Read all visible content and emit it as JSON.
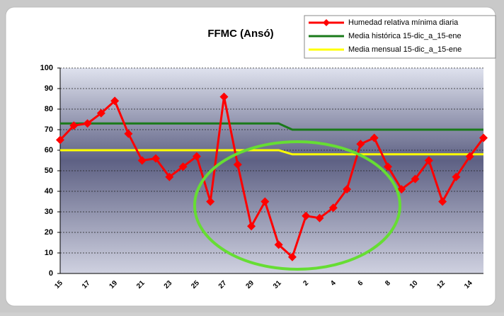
{
  "chart_data": {
    "type": "line",
    "title": "FFMC (Ansó)",
    "categories": [
      "15",
      null,
      "17",
      null,
      "19",
      null,
      "21",
      null,
      "23",
      null,
      "25",
      null,
      "27",
      null,
      "29",
      null,
      "31",
      null,
      "2",
      null,
      "4",
      null,
      "6",
      null,
      "8",
      null,
      "10",
      null,
      "12",
      null,
      "14",
      null
    ],
    "series": [
      {
        "name": "Humedad relativa mínima diaria",
        "color": "#ff0000",
        "marker": "diamond",
        "values": [
          65,
          72,
          73,
          78,
          84,
          68,
          55,
          56,
          47,
          52,
          57,
          35,
          86,
          53,
          23,
          35,
          14,
          8,
          28,
          27,
          32,
          41,
          63,
          66,
          52,
          41,
          46,
          55,
          35,
          47,
          57,
          66
        ]
      },
      {
        "name": "Media histórica 15-dic_a_15-ene",
        "color": "#1a7a1a",
        "values": [
          73,
          73,
          73,
          73,
          73,
          73,
          73,
          73,
          73,
          73,
          73,
          73,
          73,
          73,
          73,
          73,
          73,
          70,
          70,
          70,
          70,
          70,
          70,
          70,
          70,
          70,
          70,
          70,
          70,
          70,
          70,
          70
        ]
      },
      {
        "name": "Media mensual 15-dic_a_15-ene",
        "color": "#ffff00",
        "values": [
          60,
          60,
          60,
          60,
          60,
          60,
          60,
          60,
          60,
          60,
          60,
          60,
          60,
          60,
          60,
          60,
          60,
          58,
          58,
          58,
          58,
          58,
          58,
          58,
          58,
          58,
          58,
          58,
          58,
          58,
          58,
          58
        ]
      }
    ],
    "ylim": [
      0,
      100
    ],
    "yticks": [
      0,
      10,
      20,
      30,
      40,
      50,
      60,
      70,
      80,
      90,
      100
    ],
    "grid": true,
    "legend": "top-right"
  }
}
